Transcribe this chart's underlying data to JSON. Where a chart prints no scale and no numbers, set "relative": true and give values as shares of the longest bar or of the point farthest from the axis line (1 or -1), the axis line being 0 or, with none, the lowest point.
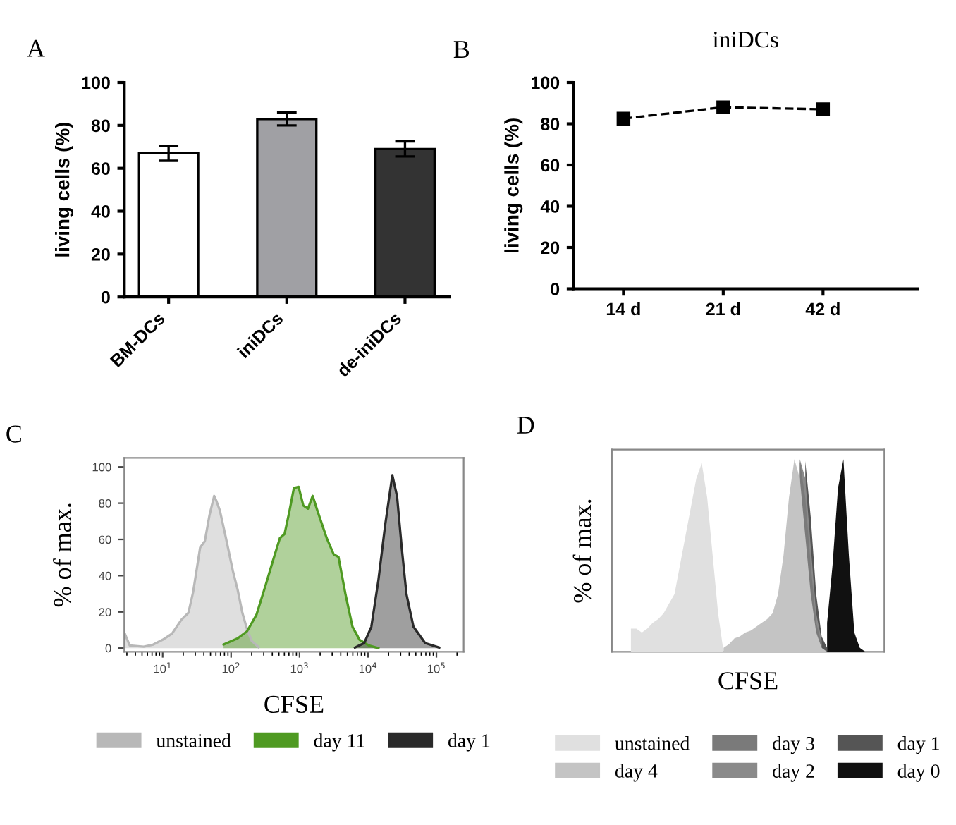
{
  "chart_data": [
    {
      "type": "bar",
      "annotations": [
        "A"
      ],
      "ylabel": "living cells (%)",
      "categories": [
        "BM-DCs",
        "iniDCs",
        "de-iniDCs"
      ],
      "values": [
        67,
        83,
        69
      ],
      "errors": [
        3.5,
        3,
        3.5
      ],
      "colors": [
        "#ffffff",
        "#a0a0a4",
        "#333333"
      ],
      "ylim": [
        0,
        100
      ],
      "yticks": [
        0,
        20,
        40,
        60,
        80,
        100
      ],
      "grid": false,
      "legend": false
    },
    {
      "type": "line",
      "title": "iniDCs",
      "annotations": [
        "B"
      ],
      "ylabel": "living cells (%)",
      "categories": [
        "14 d",
        "21 d",
        "42 d"
      ],
      "series": [
        {
          "color": "#000000",
          "values": [
            82.5,
            88,
            87
          ]
        }
      ],
      "ylim": [
        0,
        100
      ],
      "yticks": [
        0,
        20,
        40,
        60,
        80,
        100
      ],
      "marker": "square",
      "line_style": "dashed",
      "grid": false,
      "legend": false
    },
    {
      "type": "area",
      "annotations": [
        "C"
      ],
      "xlabel": "CFSE",
      "ylabel": "% of max.",
      "log": "x",
      "xlim": [
        2.75,
        250000
      ],
      "ylim": [
        -2,
        105
      ],
      "xticks": [
        {
          "value": 10,
          "label": "10$^{1}$"
        },
        {
          "value": 100,
          "label": "10$^{2}$"
        },
        {
          "value": 1000,
          "label": "10$^{3}$"
        },
        {
          "value": 10000,
          "label": "10$^{4}$"
        },
        {
          "value": 100000,
          "label": "10$^{5}$"
        }
      ],
      "yticks": [
        0,
        20,
        40,
        60,
        80,
        100
      ],
      "grid": false,
      "legend": "bottom",
      "series": [
        {
          "name": "unstained",
          "color": "#b8b8b8",
          "x": [
            2.8,
            3.3,
            5.3,
            7.3,
            10,
            13.7,
            18.8,
            23.8,
            27.9,
            35.3,
            41.3,
            48.4,
            56.6,
            61.3,
            68.5,
            84.1,
            106,
            125,
            146,
            171,
            200,
            253
          ],
          "values": [
            8,
            1.5,
            0.8,
            2,
            4.6,
            8,
            15.7,
            19.5,
            31,
            55.5,
            59,
            73.5,
            84,
            81,
            76,
            60.7,
            42.7,
            32,
            19.5,
            10.5,
            4,
            0.5
          ]
        },
        {
          "name": "day 11",
          "color": "#4f9a22",
          "x": [
            77.6,
            125,
            171,
            234,
            321,
            407,
            516,
            604,
            707,
            828,
            969,
            1135,
            1328,
            1555,
            1820,
            2496,
            3162,
            3700,
            4690,
            5940,
            7530,
            10300,
            14200
          ],
          "values": [
            2,
            5.4,
            9.3,
            18.3,
            35,
            48,
            60.7,
            63,
            75,
            88.4,
            89,
            78.7,
            77,
            84,
            76,
            60.7,
            51.7,
            50.4,
            29.8,
            11.8,
            4.6,
            1.5,
            0
          ]
        },
        {
          "name": "day 1",
          "color": "#2a2a2a",
          "x": [
            6430,
            8810,
            11200,
            14200,
            17900,
            22700,
            26600,
            31100,
            36500,
            46200,
            68500,
            110000
          ],
          "values": [
            0.3,
            2.8,
            11.8,
            37.5,
            68.4,
            95.4,
            83.8,
            55.5,
            29.8,
            11.8,
            2.8,
            0.3
          ]
        }
      ]
    },
    {
      "type": "area",
      "annotations": [
        "D"
      ],
      "xlabel": "CFSE",
      "ylabel": "% of max.",
      "relative": true,
      "tick_labels": false,
      "grid": false,
      "legend": "bottom",
      "categories": [
        null,
        null,
        null,
        null,
        null,
        null,
        null,
        null,
        null,
        null,
        null,
        null,
        null,
        null,
        null,
        null,
        null,
        null,
        null,
        null,
        null,
        null,
        null,
        null,
        null,
        null,
        null,
        null,
        null,
        null,
        null,
        null,
        null,
        null,
        null,
        null,
        null,
        null,
        null,
        null,
        null,
        null,
        null,
        null,
        null,
        null,
        null,
        null,
        null,
        null
      ],
      "series": [
        {
          "name": "unstained",
          "color": "#e0e0e0",
          "values": [
            null,
            null,
            null,
            0.12,
            0.12,
            0.1,
            0.12,
            0.15,
            0.17,
            0.2,
            0.25,
            0.3,
            0.45,
            0.6,
            0.75,
            0.9,
            0.98,
            0.8,
            0.5,
            0.2,
            0,
            null,
            null,
            null,
            null,
            null,
            null,
            null,
            null,
            null,
            null,
            null,
            null,
            null,
            null,
            null,
            null,
            null,
            null,
            null,
            null,
            null,
            null,
            null,
            null,
            null,
            null,
            null,
            null,
            null
          ]
        },
        {
          "name": "day 4",
          "color": "#c4c4c4",
          "values": [
            null,
            null,
            null,
            null,
            null,
            null,
            null,
            null,
            null,
            null,
            null,
            null,
            null,
            null,
            null,
            null,
            null,
            null,
            null,
            null,
            0.02,
            0.04,
            0.07,
            0.08,
            0.1,
            0.11,
            0.13,
            0.15,
            0.17,
            0.2,
            0.3,
            0.5,
            0.8,
            1.0,
            0.9,
            0.6,
            0.3,
            0.1,
            0.02,
            0,
            null,
            null,
            null,
            null,
            null,
            null,
            null,
            null,
            null,
            null
          ]
        },
        {
          "name": "day 3",
          "color": "#7a7a7a",
          "values": [
            null,
            null,
            null,
            null,
            null,
            null,
            null,
            null,
            null,
            null,
            null,
            null,
            null,
            null,
            null,
            null,
            null,
            null,
            null,
            null,
            null,
            null,
            null,
            null,
            null,
            null,
            null,
            null,
            null,
            null,
            null,
            null,
            null,
            null,
            0.99,
            0.8,
            0.45,
            0.15,
            0.04,
            null,
            null,
            null,
            null,
            null,
            null,
            null,
            null,
            null,
            null,
            null
          ]
        },
        {
          "name": "day 2",
          "color": "#8a8a8a",
          "values": [
            null,
            null,
            null,
            null,
            null,
            null,
            null,
            null,
            null,
            null,
            null,
            null,
            null,
            null,
            null,
            null,
            null,
            null,
            null,
            null,
            null,
            null,
            null,
            null,
            null,
            null,
            null,
            null,
            null,
            null,
            null,
            null,
            null,
            null,
            1.0,
            0.9,
            0.55,
            0.2,
            0.06,
            null,
            null,
            null,
            null,
            null,
            null,
            null,
            null,
            null,
            null,
            null
          ]
        },
        {
          "name": "day 1",
          "color": "#555555",
          "values": [
            null,
            null,
            null,
            null,
            null,
            null,
            null,
            null,
            null,
            null,
            null,
            null,
            null,
            null,
            null,
            null,
            null,
            null,
            null,
            null,
            null,
            null,
            null,
            null,
            null,
            null,
            null,
            null,
            null,
            null,
            null,
            null,
            null,
            null,
            null,
            0.99,
            0.7,
            0.3,
            0.08,
            0.02,
            null,
            null,
            null,
            null,
            null,
            null,
            null,
            null,
            null,
            null
          ]
        },
        {
          "name": "day 0",
          "color": "#111111",
          "values": [
            null,
            null,
            null,
            null,
            null,
            null,
            null,
            null,
            null,
            null,
            null,
            null,
            null,
            null,
            null,
            null,
            null,
            null,
            null,
            null,
            null,
            null,
            null,
            null,
            null,
            null,
            null,
            null,
            null,
            null,
            null,
            null,
            null,
            null,
            null,
            null,
            null,
            null,
            null,
            0.15,
            0.45,
            0.85,
            1.0,
            0.5,
            0.1,
            0.02,
            0,
            null,
            null,
            null
          ]
        }
      ]
    }
  ]
}
